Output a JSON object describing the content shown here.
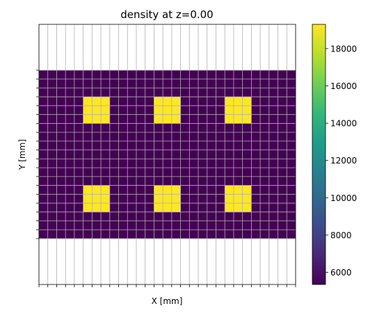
{
  "chart_data": {
    "type": "heatmap",
    "title": "density at z=0.00",
    "xlabel": "X [mm]",
    "ylabel": "Y [mm]",
    "grid": true,
    "colormap": "viridis",
    "colorbar": {
      "min": 5350,
      "max": 19300,
      "ticks": [
        6000,
        8000,
        10000,
        12000,
        14000,
        16000,
        18000
      ],
      "tick_labels": [
        "6000",
        "8000",
        "10000",
        "12000",
        "14000",
        "16000",
        "18000"
      ]
    },
    "grid_size": {
      "cols": 29,
      "rows": 19
    },
    "background_value": 5350,
    "high_value": 19300,
    "high_regions": [
      {
        "col_start": 5,
        "col_end": 7,
        "row_start": 3,
        "row_end": 5
      },
      {
        "col_start": 13,
        "col_end": 15,
        "row_start": 3,
        "row_end": 5
      },
      {
        "col_start": 21,
        "col_end": 23,
        "row_start": 3,
        "row_end": 5
      },
      {
        "col_start": 5,
        "col_end": 7,
        "row_start": 13,
        "row_end": 15
      },
      {
        "col_start": 13,
        "col_end": 15,
        "row_start": 13,
        "row_end": 15
      },
      {
        "col_start": 21,
        "col_end": 23,
        "row_start": 13,
        "row_end": 15
      }
    ]
  }
}
